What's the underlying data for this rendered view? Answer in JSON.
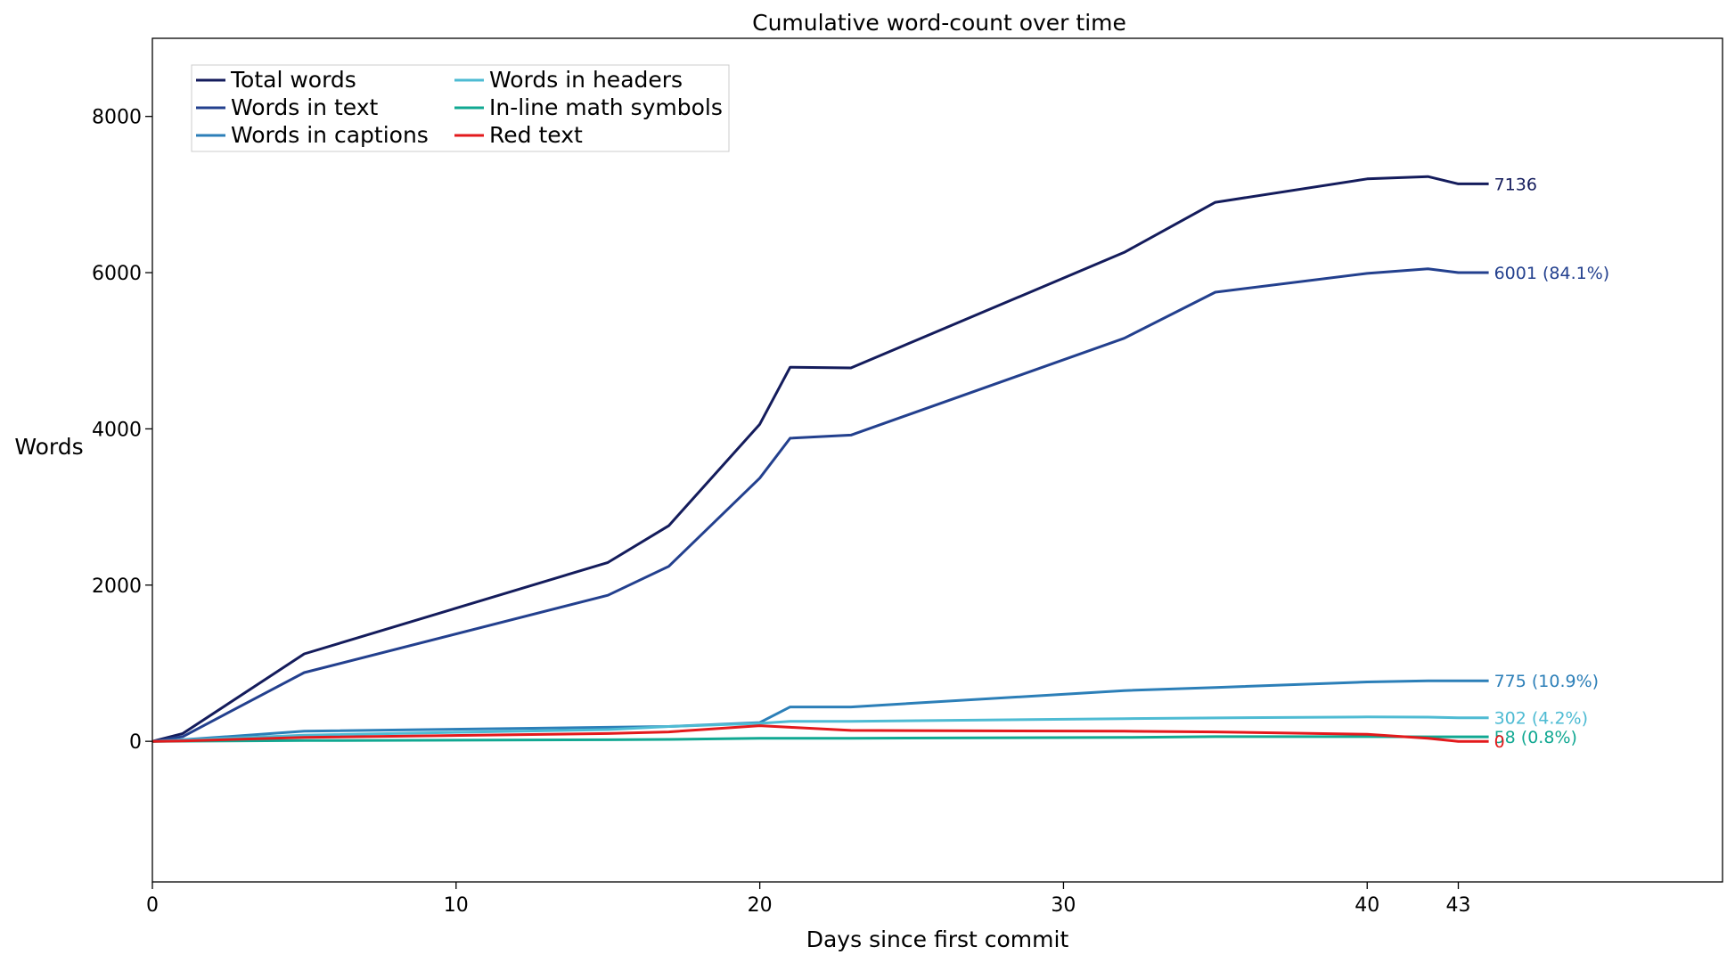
{
  "chart_data": {
    "type": "line",
    "title": "Cumulative word-count over time",
    "xlabel": "Days since first commit",
    "ylabel": "Words",
    "xlim": [
      0,
      51.7
    ],
    "ylim": [
      -1800,
      9000
    ],
    "xticks": [
      0,
      10,
      20,
      30,
      40,
      43
    ],
    "yticks": [
      0,
      2000,
      4000,
      6000,
      8000
    ],
    "grid": false,
    "legend_position": "top-left",
    "legend_columns": 2,
    "x": [
      0,
      1,
      5,
      15,
      17,
      20,
      21,
      23,
      32,
      35,
      40,
      42,
      43,
      44
    ],
    "series": [
      {
        "name": "Total words",
        "color": "#141c5c",
        "values": [
          0,
          100,
          1120,
          2290,
          2760,
          4060,
          4790,
          4780,
          6260,
          6900,
          7200,
          7230,
          7136,
          7136
        ],
        "end_label": "7136"
      },
      {
        "name": "Words in text",
        "color": "#23408e",
        "values": [
          0,
          60,
          880,
          1870,
          2240,
          3370,
          3880,
          3920,
          5160,
          5750,
          5990,
          6050,
          6001,
          6001
        ],
        "end_label": "6001 (84.1%)"
      },
      {
        "name": "Words in captions",
        "color": "#2c7fb8",
        "values": [
          0,
          20,
          130,
          180,
          190,
          240,
          440,
          440,
          650,
          690,
          760,
          775,
          775,
          775
        ],
        "end_label": "775 (10.9%)"
      },
      {
        "name": "Words in headers",
        "color": "#4ebbd3",
        "values": [
          0,
          15,
          80,
          150,
          190,
          230,
          255,
          255,
          290,
          300,
          312,
          310,
          302,
          302
        ],
        "end_label": "302 (4.2%)"
      },
      {
        "name": "In-line math symbols",
        "color": "#11a892",
        "values": [
          0,
          2,
          10,
          20,
          25,
          40,
          40,
          40,
          50,
          60,
          60,
          58,
          58,
          58
        ],
        "end_label": "58 (0.8%)"
      },
      {
        "name": "Red text",
        "color": "#e31a1c",
        "values": [
          0,
          5,
          50,
          100,
          120,
          200,
          180,
          140,
          130,
          120,
          90,
          40,
          0,
          0
        ],
        "end_label": "0"
      }
    ]
  }
}
